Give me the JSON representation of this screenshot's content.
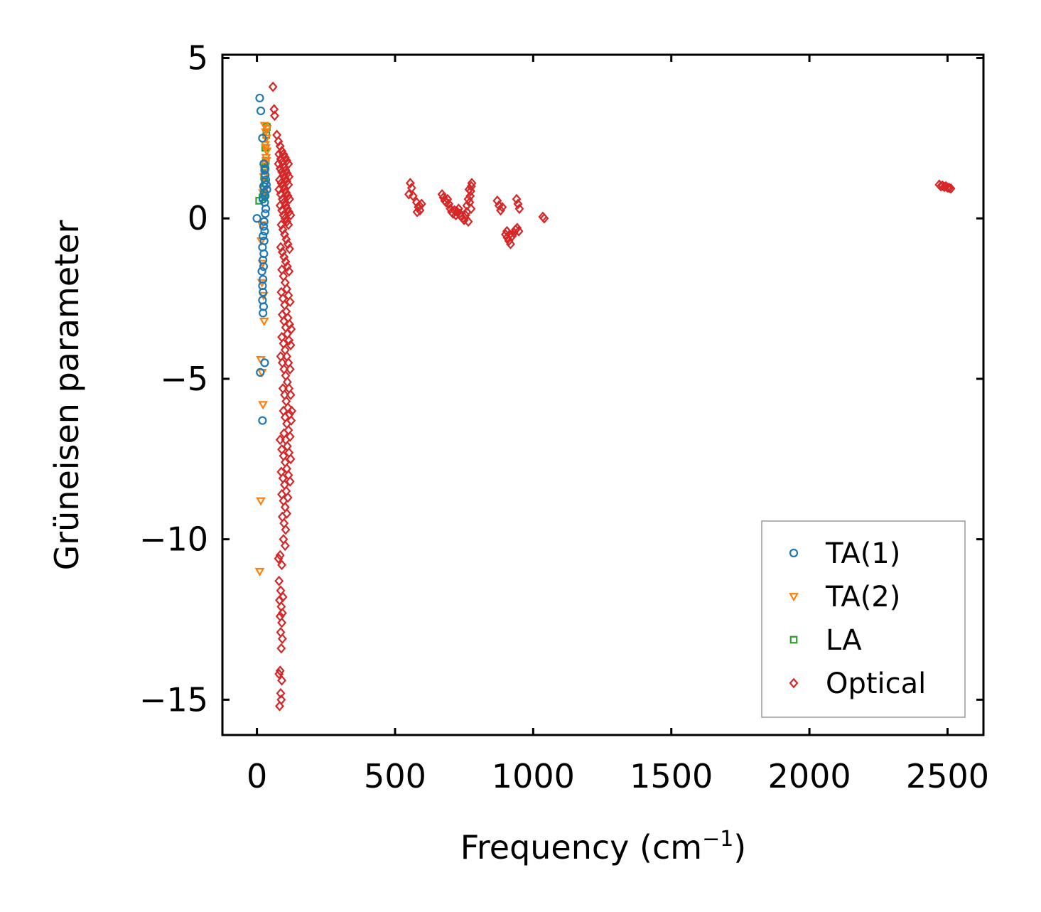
{
  "chart_data": {
    "type": "scatter",
    "title": "",
    "xlabel": "Frequency (cm",
    "xlabel_sup": "−1",
    "xlabel_close": ")",
    "ylabel": "Grüneisen parameter",
    "xlim": [
      -125,
      2630
    ],
    "ylim": [
      -16.1,
      5.1
    ],
    "xticks": [
      0,
      500,
      1000,
      1500,
      2000,
      2500
    ],
    "yticks": [
      5,
      0,
      -5,
      -10,
      -15
    ],
    "xtick_labels": [
      "0",
      "500",
      "1000",
      "1500",
      "2000",
      "2500"
    ],
    "ytick_labels": [
      "5",
      "0",
      "−5",
      "−10",
      "−15"
    ],
    "legend_position": "lower-right",
    "series": [
      {
        "name": "TA(1)",
        "marker": "circle",
        "color": "#1f77b4",
        "points": [
          [
            10,
            3.75
          ],
          [
            14,
            3.35
          ],
          [
            20,
            2.5
          ],
          [
            25,
            1.7
          ],
          [
            28,
            1.5
          ],
          [
            30,
            1.35
          ],
          [
            32,
            1.2
          ],
          [
            34,
            1.05
          ],
          [
            36,
            0.9
          ],
          [
            30,
            0.7
          ],
          [
            28,
            0.5
          ],
          [
            32,
            0.3
          ],
          [
            30,
            0.15
          ],
          [
            0,
            0.0
          ],
          [
            26,
            -0.1
          ],
          [
            24,
            -0.25
          ],
          [
            28,
            -0.4
          ],
          [
            22,
            -0.55
          ],
          [
            26,
            -0.7
          ],
          [
            20,
            -0.9
          ],
          [
            25,
            -1.1
          ],
          [
            22,
            -1.3
          ],
          [
            24,
            -1.5
          ],
          [
            18,
            -1.65
          ],
          [
            22,
            -1.9
          ],
          [
            20,
            -2.1
          ],
          [
            22,
            -2.3
          ],
          [
            20,
            -2.55
          ],
          [
            24,
            -2.75
          ],
          [
            22,
            -2.95
          ],
          [
            12,
            -4.8
          ],
          [
            28,
            -4.5
          ],
          [
            20,
            -6.3
          ],
          [
            24,
            1.0
          ],
          [
            26,
            0.8
          ],
          [
            22,
            0.6
          ],
          [
            30,
            1.55
          ]
        ]
      },
      {
        "name": "TA(2)",
        "marker": "triangle",
        "color": "#ff7f0e",
        "points": [
          [
            28,
            2.9
          ],
          [
            32,
            2.7
          ],
          [
            34,
            2.5
          ],
          [
            30,
            2.3
          ],
          [
            36,
            2.1
          ],
          [
            33,
            1.9
          ],
          [
            30,
            1.7
          ],
          [
            27,
            1.5
          ],
          [
            25,
            1.3
          ],
          [
            22,
            0.8
          ],
          [
            18,
            -0.2
          ],
          [
            16,
            -0.7
          ],
          [
            20,
            -1.4
          ],
          [
            18,
            -2.0
          ],
          [
            24,
            -2.4
          ],
          [
            26,
            -3.2
          ],
          [
            14,
            -4.4
          ],
          [
            18,
            -4.8
          ],
          [
            22,
            -5.8
          ],
          [
            14,
            -8.8
          ],
          [
            10,
            -11.0
          ],
          [
            36,
            2.8
          ],
          [
            32,
            2.2
          ],
          [
            34,
            1.8
          ]
        ]
      },
      {
        "name": "LA",
        "marker": "square",
        "color": "#2ca02c",
        "points": [
          [
            8,
            0.55
          ],
          [
            20,
            0.65
          ],
          [
            25,
            0.9
          ],
          [
            28,
            1.1
          ],
          [
            30,
            1.6
          ],
          [
            26,
            1.3
          ],
          [
            32,
            1.8
          ],
          [
            30,
            2.2
          ],
          [
            34,
            2.6
          ],
          [
            36,
            2.85
          ],
          [
            28,
            0.75
          ]
        ]
      },
      {
        "name": "Optical",
        "marker": "diamond",
        "color": "#d62728",
        "points": [
          [
            58,
            4.1
          ],
          [
            62,
            3.4
          ],
          [
            64,
            3.2
          ],
          [
            72,
            2.6
          ],
          [
            78,
            2.4
          ],
          [
            84,
            2.25
          ],
          [
            90,
            2.1
          ],
          [
            96,
            2.0
          ],
          [
            102,
            1.9
          ],
          [
            108,
            1.8
          ],
          [
            114,
            1.7
          ],
          [
            80,
            2.0
          ],
          [
            86,
            1.85
          ],
          [
            92,
            1.75
          ],
          [
            98,
            1.6
          ],
          [
            104,
            1.5
          ],
          [
            110,
            1.4
          ],
          [
            116,
            1.3
          ],
          [
            78,
            1.7
          ],
          [
            84,
            1.55
          ],
          [
            90,
            1.45
          ],
          [
            96,
            1.35
          ],
          [
            102,
            1.25
          ],
          [
            108,
            1.15
          ],
          [
            114,
            1.05
          ],
          [
            82,
            1.2
          ],
          [
            88,
            1.1
          ],
          [
            94,
            1.0
          ],
          [
            100,
            0.9
          ],
          [
            106,
            0.8
          ],
          [
            112,
            0.7
          ],
          [
            118,
            0.6
          ],
          [
            80,
            0.9
          ],
          [
            86,
            0.75
          ],
          [
            92,
            0.6
          ],
          [
            98,
            0.5
          ],
          [
            104,
            0.4
          ],
          [
            110,
            0.3
          ],
          [
            116,
            0.2
          ],
          [
            122,
            0.1
          ],
          [
            84,
            0.4
          ],
          [
            90,
            0.25
          ],
          [
            96,
            0.1
          ],
          [
            102,
            0.0
          ],
          [
            108,
            -0.1
          ],
          [
            114,
            -0.2
          ],
          [
            88,
            -0.2
          ],
          [
            94,
            -0.35
          ],
          [
            100,
            -0.5
          ],
          [
            106,
            -0.65
          ],
          [
            112,
            -0.8
          ],
          [
            118,
            -0.95
          ],
          [
            86,
            -0.9
          ],
          [
            92,
            -1.05
          ],
          [
            98,
            -1.2
          ],
          [
            104,
            -1.35
          ],
          [
            110,
            -1.5
          ],
          [
            116,
            -1.65
          ],
          [
            90,
            -1.6
          ],
          [
            96,
            -1.8
          ],
          [
            102,
            -2.0
          ],
          [
            108,
            -2.2
          ],
          [
            114,
            -2.4
          ],
          [
            120,
            -2.6
          ],
          [
            88,
            -2.3
          ],
          [
            94,
            -2.5
          ],
          [
            100,
            -2.7
          ],
          [
            106,
            -2.9
          ],
          [
            112,
            -3.1
          ],
          [
            118,
            -3.3
          ],
          [
            124,
            -3.45
          ],
          [
            92,
            -3.0
          ],
          [
            98,
            -3.2
          ],
          [
            104,
            -3.4
          ],
          [
            110,
            -3.6
          ],
          [
            116,
            -3.8
          ],
          [
            122,
            -3.95
          ],
          [
            90,
            -3.7
          ],
          [
            96,
            -3.9
          ],
          [
            102,
            -4.1
          ],
          [
            108,
            -4.3
          ],
          [
            114,
            -4.5
          ],
          [
            120,
            -4.7
          ],
          [
            86,
            -4.3
          ],
          [
            92,
            -4.5
          ],
          [
            98,
            -4.7
          ],
          [
            104,
            -4.9
          ],
          [
            110,
            -5.1
          ],
          [
            116,
            -5.3
          ],
          [
            122,
            -5.5
          ],
          [
            94,
            -5.3
          ],
          [
            100,
            -5.5
          ],
          [
            106,
            -5.7
          ],
          [
            112,
            -5.9
          ],
          [
            118,
            -6.1
          ],
          [
            124,
            -6.3
          ],
          [
            96,
            -6.0
          ],
          [
            102,
            -6.2
          ],
          [
            108,
            -6.4
          ],
          [
            114,
            -6.6
          ],
          [
            120,
            -6.8
          ],
          [
            126,
            -6.0
          ],
          [
            98,
            -6.7
          ],
          [
            104,
            -6.9
          ],
          [
            110,
            -7.1
          ],
          [
            116,
            -7.3
          ],
          [
            122,
            -7.5
          ],
          [
            84,
            -6.9
          ],
          [
            90,
            -7.2
          ],
          [
            96,
            -7.4
          ],
          [
            102,
            -7.6
          ],
          [
            108,
            -7.8
          ],
          [
            114,
            -8.0
          ],
          [
            120,
            -8.2
          ],
          [
            88,
            -7.9
          ],
          [
            94,
            -8.1
          ],
          [
            100,
            -8.3
          ],
          [
            106,
            -8.5
          ],
          [
            112,
            -8.7
          ],
          [
            90,
            -8.6
          ],
          [
            96,
            -8.8
          ],
          [
            102,
            -9.0
          ],
          [
            108,
            -9.2
          ],
          [
            92,
            -9.3
          ],
          [
            98,
            -9.5
          ],
          [
            104,
            -9.7
          ],
          [
            96,
            -10.0
          ],
          [
            102,
            -10.2
          ],
          [
            84,
            -10.5
          ],
          [
            90,
            -10.8
          ],
          [
            80,
            -11.3
          ],
          [
            86,
            -11.6
          ],
          [
            82,
            -11.9
          ],
          [
            88,
            -12.1
          ],
          [
            84,
            -12.4
          ],
          [
            90,
            -12.6
          ],
          [
            86,
            -12.9
          ],
          [
            92,
            -13.1
          ],
          [
            88,
            -13.4
          ],
          [
            84,
            -14.1
          ],
          [
            90,
            -14.4
          ],
          [
            86,
            -14.8
          ],
          [
            82,
            -15.2
          ],
          [
            88,
            -15.0
          ],
          [
            80,
            -14.2
          ],
          [
            92,
            -12.3
          ],
          [
            94,
            -11.8
          ],
          [
            78,
            -10.6
          ],
          [
            555,
            1.1
          ],
          [
            560,
            0.95
          ],
          [
            550,
            0.75
          ],
          [
            565,
            0.7
          ],
          [
            578,
            0.5
          ],
          [
            584,
            0.35
          ],
          [
            590,
            0.25
          ],
          [
            596,
            0.45
          ],
          [
            580,
            0.2
          ],
          [
            588,
            0.4
          ],
          [
            670,
            0.75
          ],
          [
            675,
            0.65
          ],
          [
            680,
            0.55
          ],
          [
            685,
            0.5
          ],
          [
            690,
            0.6
          ],
          [
            695,
            0.45
          ],
          [
            700,
            0.3
          ],
          [
            705,
            0.2
          ],
          [
            710,
            0.15
          ],
          [
            715,
            0.25
          ],
          [
            720,
            0.1
          ],
          [
            725,
            0.2
          ],
          [
            730,
            0.3
          ],
          [
            735,
            0.15
          ],
          [
            740,
            0.05
          ],
          [
            745,
            0.0
          ],
          [
            750,
            -0.05
          ],
          [
            755,
            0.1
          ],
          [
            760,
            0.2
          ],
          [
            765,
            -0.1
          ],
          [
            770,
            0.5
          ],
          [
            772,
            0.7
          ],
          [
            774,
            0.85
          ],
          [
            776,
            1.0
          ],
          [
            778,
            1.1
          ],
          [
            775,
            0.3
          ],
          [
            760,
            0.4
          ],
          [
            765,
            0.6
          ],
          [
            768,
            0.9
          ],
          [
            870,
            0.55
          ],
          [
            876,
            0.4
          ],
          [
            882,
            0.25
          ],
          [
            888,
            0.35
          ],
          [
            940,
            0.6
          ],
          [
            945,
            0.45
          ],
          [
            950,
            0.3
          ],
          [
            900,
            -0.5
          ],
          [
            906,
            -0.6
          ],
          [
            912,
            -0.7
          ],
          [
            918,
            -0.8
          ],
          [
            924,
            -0.55
          ],
          [
            930,
            -0.45
          ],
          [
            936,
            -0.35
          ],
          [
            942,
            -0.3
          ],
          [
            948,
            -0.4
          ],
          [
            905,
            -0.4
          ],
          [
            915,
            -0.5
          ],
          [
            1035,
            0.05
          ],
          [
            1040,
            0.0
          ],
          [
            2470,
            1.05
          ],
          [
            2476,
            1.0
          ],
          [
            2482,
            1.02
          ],
          [
            2488,
            0.98
          ],
          [
            2494,
            1.0
          ],
          [
            2500,
            0.96
          ],
          [
            2506,
            0.95
          ],
          [
            2512,
            0.93
          ]
        ]
      }
    ]
  }
}
